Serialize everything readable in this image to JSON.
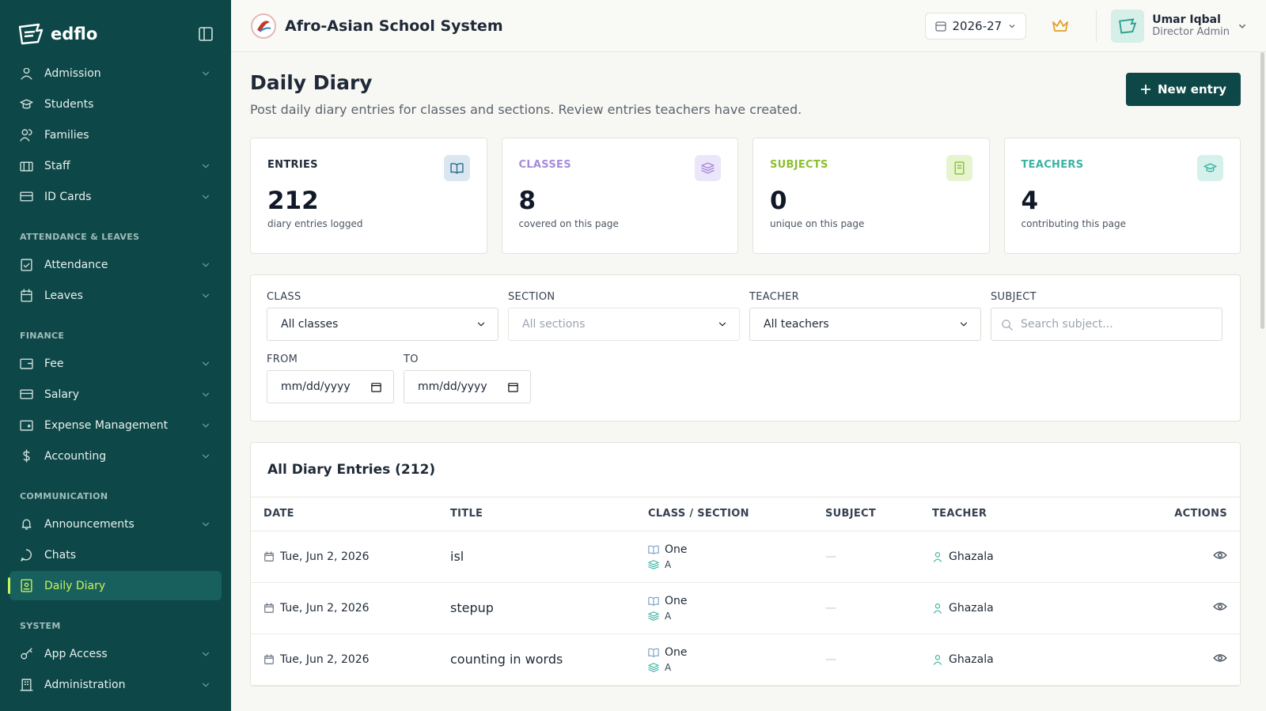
{
  "sidebar": {
    "brand": "edflo",
    "groups": [
      {
        "items": [
          {
            "label": "Admission",
            "expandable": true
          },
          {
            "label": "Students",
            "expandable": false
          },
          {
            "label": "Families",
            "expandable": false
          },
          {
            "label": "Staff",
            "expandable": true
          },
          {
            "label": "ID Cards",
            "expandable": true
          }
        ]
      },
      {
        "heading": "ATTENDANCE & LEAVES",
        "items": [
          {
            "label": "Attendance",
            "expandable": true
          },
          {
            "label": "Leaves",
            "expandable": true
          }
        ]
      },
      {
        "heading": "FINANCE",
        "items": [
          {
            "label": "Fee",
            "expandable": true
          },
          {
            "label": "Salary",
            "expandable": true
          },
          {
            "label": "Expense Management",
            "expandable": true
          },
          {
            "label": "Accounting",
            "expandable": true
          }
        ]
      },
      {
        "heading": "COMMUNICATION",
        "items": [
          {
            "label": "Announcements",
            "expandable": true
          },
          {
            "label": "Chats",
            "expandable": false
          },
          {
            "label": "Daily Diary",
            "expandable": false,
            "active": true
          }
        ]
      },
      {
        "heading": "SYSTEM",
        "items": [
          {
            "label": "App Access",
            "expandable": true
          },
          {
            "label": "Administration",
            "expandable": true
          }
        ]
      }
    ]
  },
  "header": {
    "school": "Afro-Asian School System",
    "session": "2026-27",
    "user_name": "Umar Iqbal",
    "user_role": "Director Admin"
  },
  "page": {
    "title": "Daily Diary",
    "subtitle": "Post daily diary entries for classes and sections. Review entries teachers have created.",
    "button": "New entry"
  },
  "stats": [
    {
      "label": "ENTRIES",
      "value": 212,
      "caption": "diary entries logged",
      "color": "#1f2937",
      "icon_bg": "#dbe7f0"
    },
    {
      "label": "CLASSES",
      "value": 8,
      "caption": "covered on this page",
      "color": "#a78bdb",
      "icon_bg": "#ece6fa"
    },
    {
      "label": "SUBJECTS",
      "value": 0,
      "caption": "unique on this page",
      "color": "#8bbf2f",
      "icon_bg": "#e6f4cf"
    },
    {
      "label": "TEACHERS",
      "value": 4,
      "caption": "contributing this page",
      "color": "#3bb3a3",
      "icon_bg": "#d6f1ec"
    }
  ],
  "filters": {
    "rows": [
      [
        {
          "label": "CLASS",
          "value": "All classes",
          "kind": "select"
        },
        {
          "label": "SECTION",
          "value": "All sections",
          "kind": "select-muted"
        },
        {
          "label": "TEACHER",
          "value": "All teachers",
          "kind": "select"
        },
        {
          "label": "SUBJECT",
          "value": "Search subject...",
          "kind": "search"
        }
      ],
      [
        {
          "label": "FROM",
          "value": "mm/dd/yyyy",
          "kind": "date"
        },
        {
          "label": "TO",
          "value": "mm/dd/yyyy",
          "kind": "date"
        }
      ]
    ]
  },
  "table": {
    "title": "All Diary Entries (212)",
    "columns": [
      "DATE",
      "TITLE",
      "CLASS / SECTION",
      "SUBJECT",
      "TEACHER",
      "ACTIONS"
    ],
    "rows": [
      {
        "date": "Tue, Jun 2, 2026",
        "title": "isl",
        "class": "One",
        "section": "A",
        "subject": "—",
        "teacher": "Ghazala"
      },
      {
        "date": "Tue, Jun 2, 2026",
        "title": "stepup",
        "class": "One",
        "section": "A",
        "subject": "—",
        "teacher": "Ghazala"
      },
      {
        "date": "Tue, Jun 2, 2026",
        "title": "counting in words",
        "class": "One",
        "section": "A",
        "subject": "—",
        "teacher": "Ghazala"
      }
    ]
  }
}
